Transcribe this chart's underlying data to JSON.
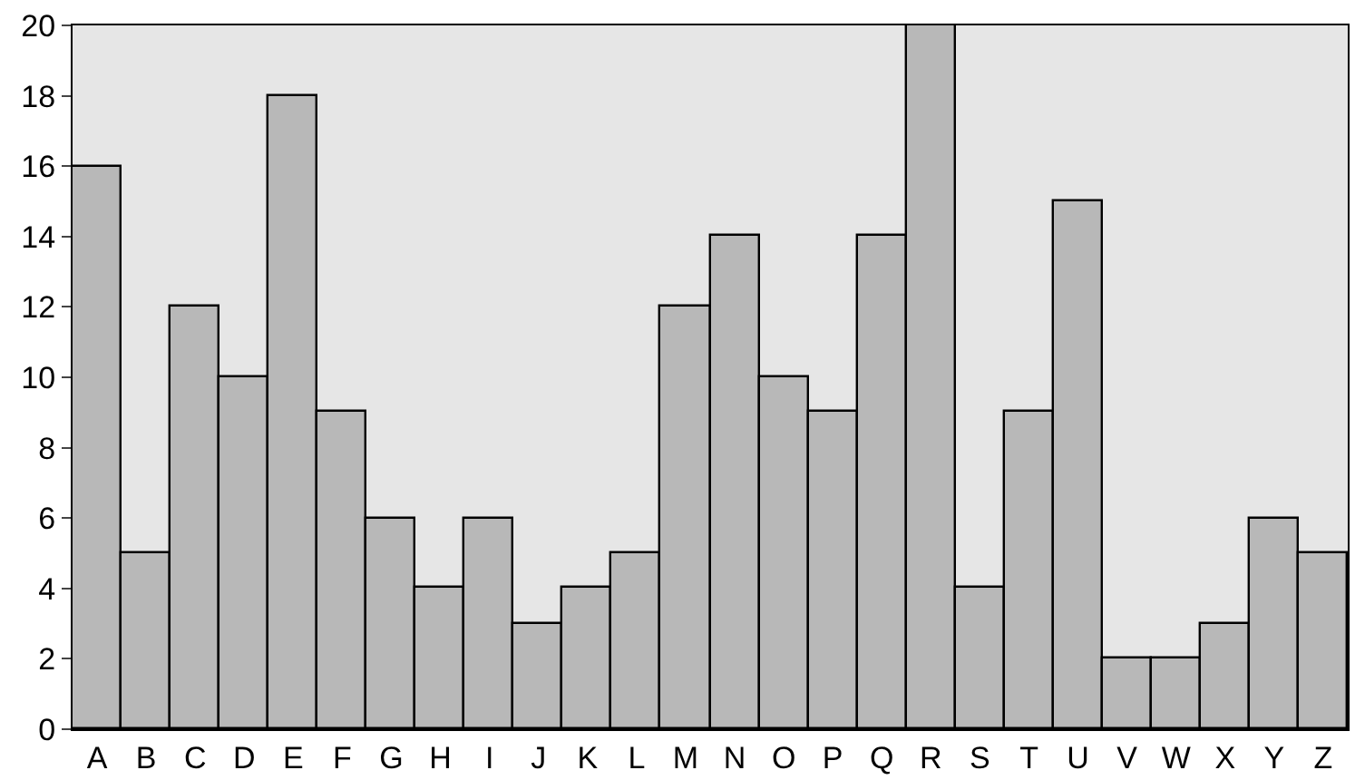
{
  "chart_data": {
    "type": "bar",
    "categories": [
      "A",
      "B",
      "C",
      "D",
      "E",
      "F",
      "G",
      "H",
      "I",
      "J",
      "K",
      "L",
      "M",
      "N",
      "O",
      "P",
      "Q",
      "R",
      "S",
      "T",
      "U",
      "V",
      "W",
      "X",
      "Y",
      "Z"
    ],
    "values": [
      16,
      5,
      12,
      10,
      18,
      9,
      6,
      4,
      6,
      3,
      4,
      5,
      12,
      14,
      10,
      9,
      14,
      20,
      4,
      9,
      15,
      2,
      2,
      3,
      6,
      5
    ],
    "color": "#b8b8b8",
    "ylim": [
      0,
      20
    ],
    "yticks": [
      0,
      2,
      4,
      6,
      8,
      10,
      12,
      14,
      16,
      18,
      20
    ],
    "grid": false,
    "legend": false
  }
}
